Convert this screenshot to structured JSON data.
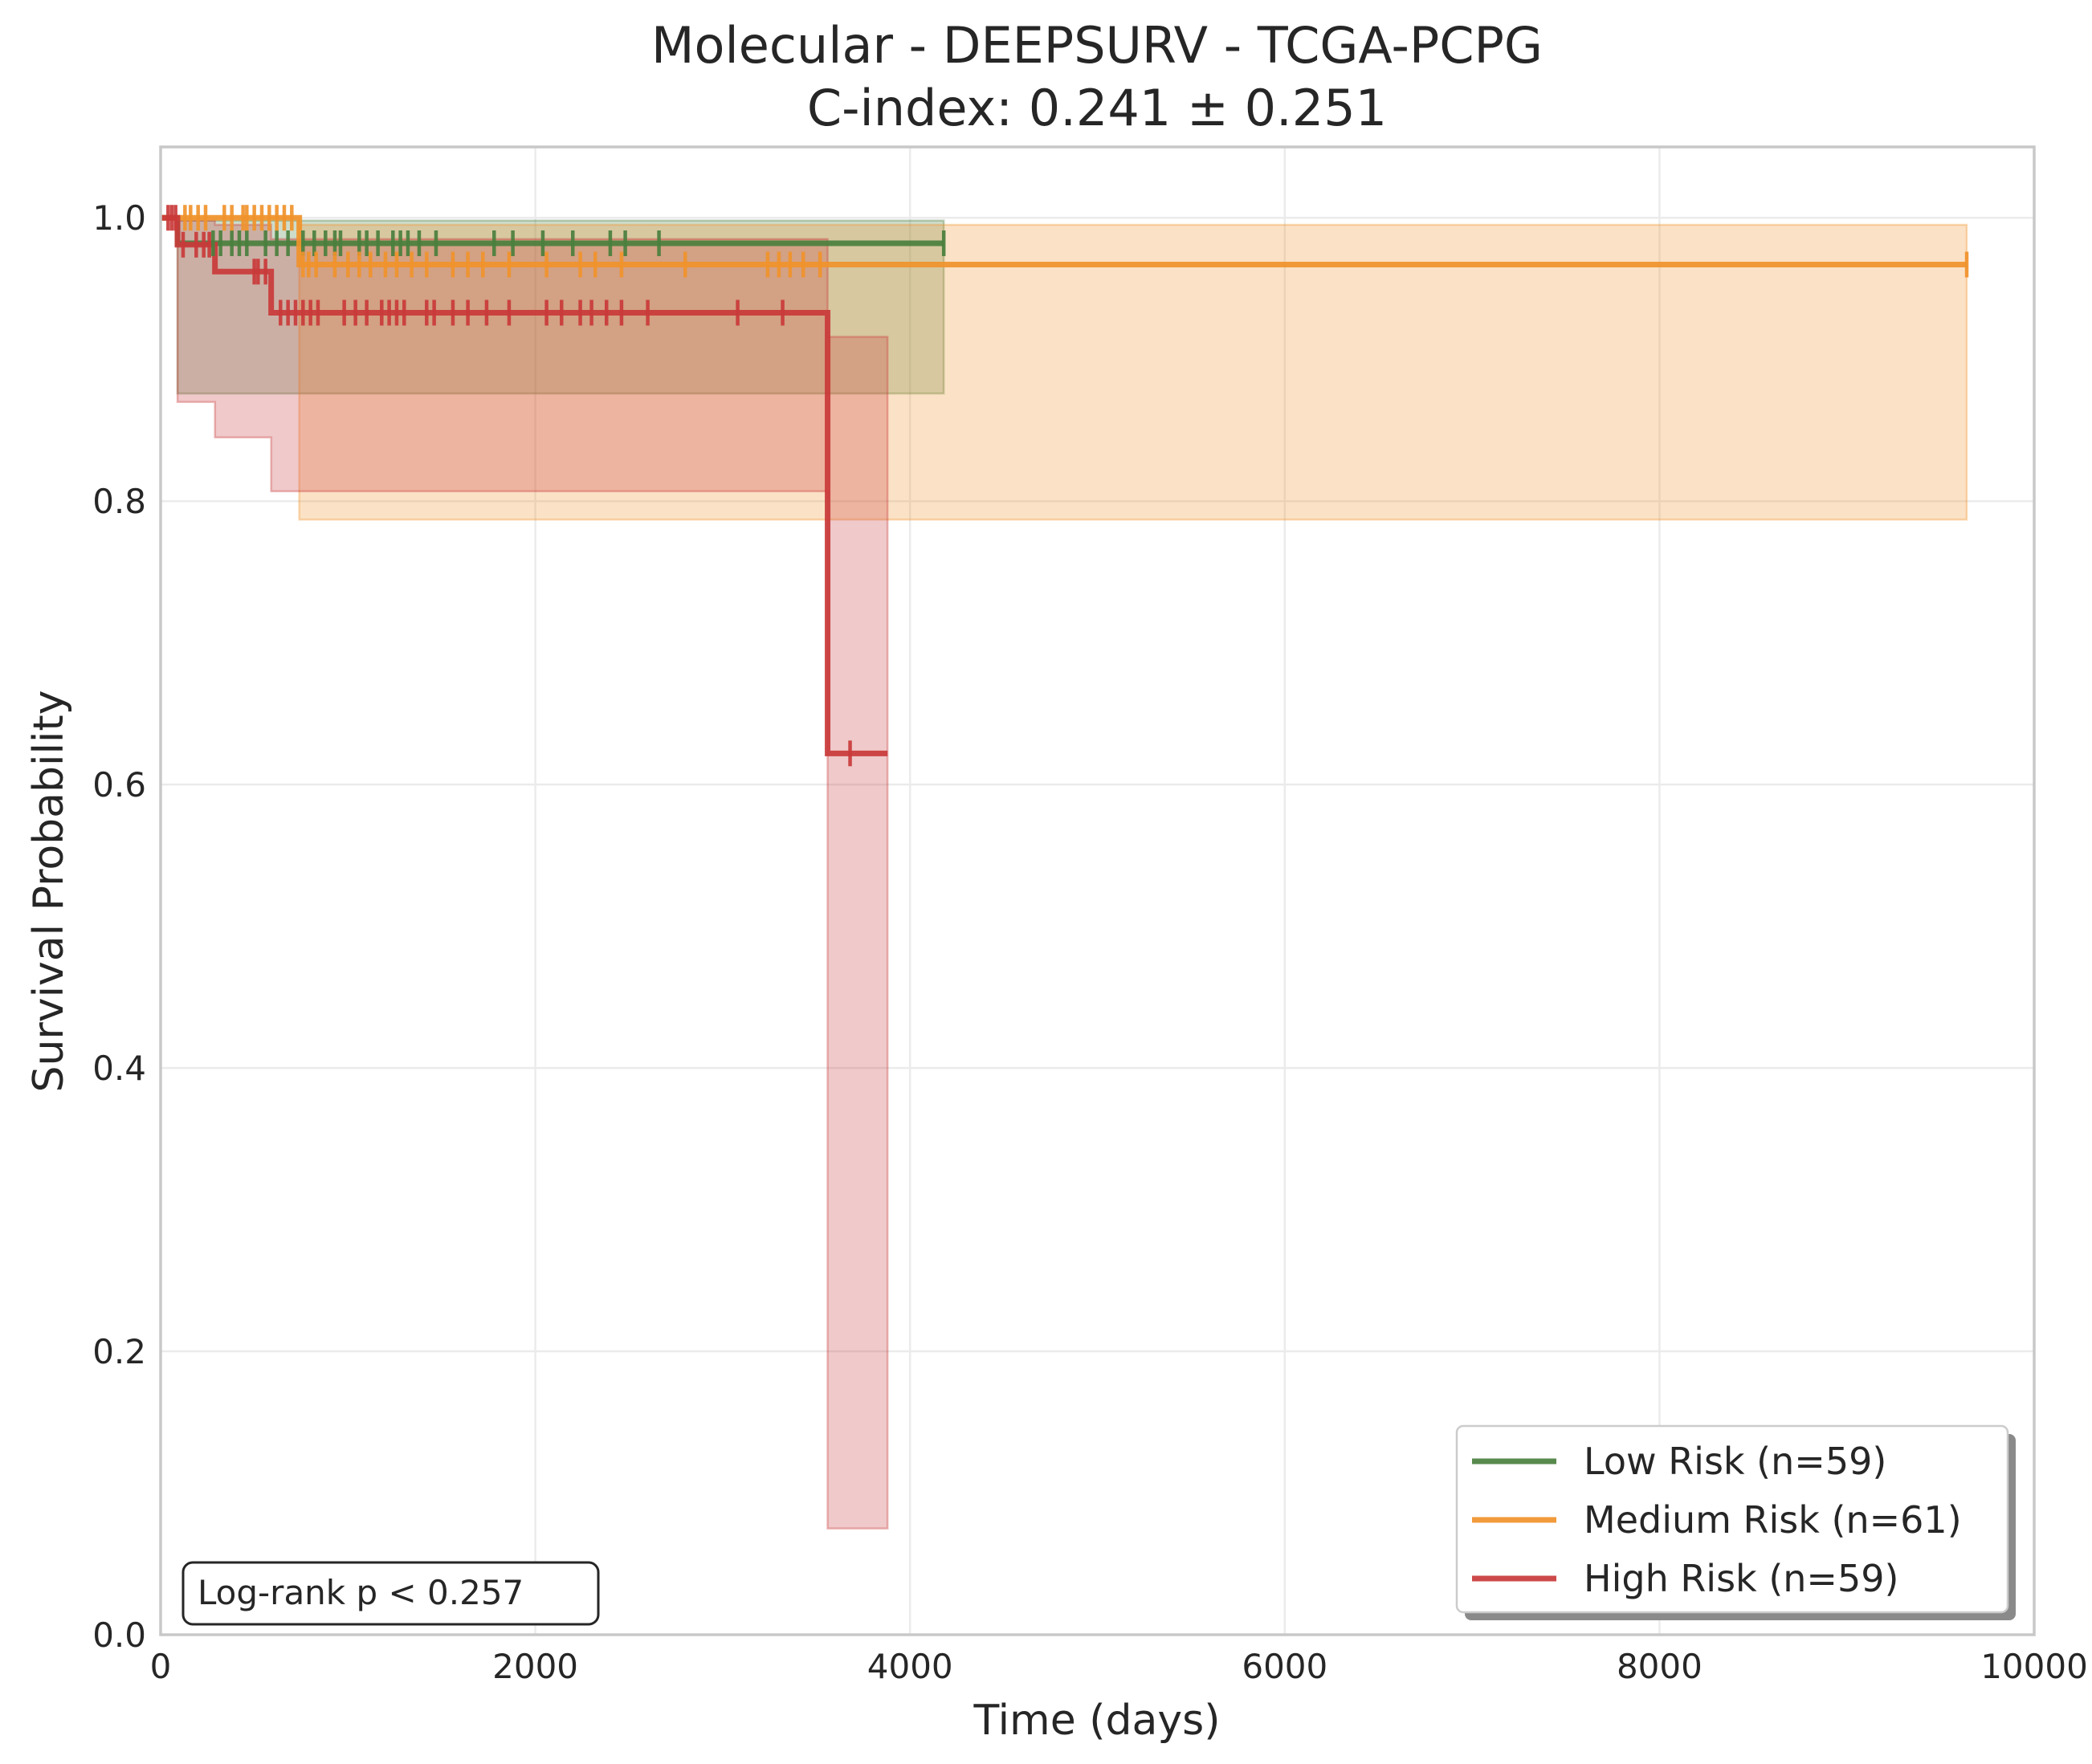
{
  "chart_data": {
    "type": "line",
    "subtype": "kaplan-meier",
    "title": "Molecular - DEEPSURV - TCGA-PCPG",
    "subtitle": "C-index: 0.241 ± 0.251",
    "xlabel": "Time (days)",
    "ylabel": "Survival Probability",
    "xlim": [
      0,
      10000
    ],
    "ylim": [
      0,
      1.05
    ],
    "xticks": [
      0,
      2000,
      4000,
      6000,
      8000,
      10000
    ],
    "xtick_labels": [
      "0",
      "2000",
      "4000",
      "6000",
      "8000",
      "10000"
    ],
    "yticks": [
      0.0,
      0.2,
      0.4,
      0.6,
      0.8,
      1.0
    ],
    "ytick_labels": [
      "0.0",
      "0.2",
      "0.4",
      "0.6",
      "0.8",
      "1.0"
    ],
    "grid": true,
    "legend_position": "lower-right",
    "annotation": "Log-rank p < 0.257",
    "series": [
      {
        "name": "Low Risk (n=59)",
        "color": "#4a7f3e",
        "steps": [
          [
            0,
            1.0
          ],
          [
            90,
            0.982
          ],
          [
            4180,
            0.982
          ]
        ],
        "ci": [
          [
            0,
            1.0,
            1.0
          ],
          [
            90,
            0.876,
            0.998
          ],
          [
            4180,
            0.876,
            0.998
          ]
        ],
        "censors": [
          280,
          320,
          380,
          420,
          460,
          560,
          620,
          680,
          760,
          820,
          880,
          930,
          960,
          1060,
          1100,
          1160,
          1240,
          1280,
          1320,
          1380,
          1470,
          1780,
          1880,
          2040,
          2200,
          2400,
          2480,
          2660,
          4180
        ]
      },
      {
        "name": "Medium Risk (n=61)",
        "color": "#f0932b",
        "steps": [
          [
            0,
            1.0
          ],
          [
            740,
            0.967
          ],
          [
            9640,
            0.967
          ]
        ],
        "ci": [
          [
            0,
            1.0,
            1.0
          ],
          [
            740,
            0.787,
            0.995
          ],
          [
            9640,
            0.787,
            0.995
          ]
        ],
        "censors": [
          130,
          160,
          200,
          240,
          340,
          380,
          440,
          460,
          500,
          540,
          580,
          620,
          660,
          700,
          760,
          790,
          830,
          930,
          1000,
          1060,
          1120,
          1200,
          1260,
          1340,
          1420,
          1560,
          1640,
          1720,
          1860,
          2060,
          2240,
          2320,
          2460,
          2800,
          3240,
          3300,
          3360,
          3430,
          3520,
          9640
        ]
      },
      {
        "name": "High Risk (n=59)",
        "color": "#c9393a",
        "steps": [
          [
            0,
            1.0
          ],
          [
            90,
            0.981
          ],
          [
            290,
            0.962
          ],
          [
            590,
            0.933
          ],
          [
            3560,
            0.622
          ],
          [
            3880,
            0.622
          ]
        ],
        "ci": [
          [
            0,
            1.0,
            1.0
          ],
          [
            90,
            0.87,
            0.998
          ],
          [
            290,
            0.845,
            0.995
          ],
          [
            590,
            0.807,
            0.985
          ],
          [
            3560,
            0.075,
            0.916
          ],
          [
            3880,
            0.075,
            0.916
          ]
        ],
        "censors": [
          40,
          60,
          80,
          120,
          190,
          230,
          260,
          500,
          520,
          560,
          640,
          680,
          720,
          760,
          800,
          840,
          980,
          1040,
          1100,
          1180,
          1220,
          1260,
          1300,
          1420,
          1460,
          1560,
          1640,
          1740,
          1860,
          2060,
          2140,
          2240,
          2300,
          2380,
          2460,
          2600,
          3080,
          3320,
          3680
        ]
      }
    ]
  }
}
